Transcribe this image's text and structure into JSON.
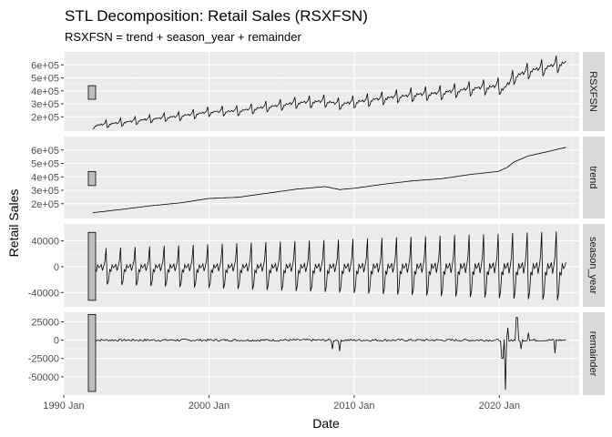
{
  "chart_data": {
    "type": "line",
    "title": "STL Decomposition: Retail Sales (RSXFSN)",
    "subtitle": "RSXFSN = trend + season_year + remainder",
    "xlabel": "Date",
    "ylabel": "Retail Sales",
    "x_ticks": [
      "1990 Jan",
      "2000 Jan",
      "2010 Jan",
      "2020 Jan"
    ],
    "x_tick_years": [
      1990,
      2000,
      2010,
      2020
    ],
    "xlim": [
      1990,
      2025.5
    ],
    "x_start": 1992.0,
    "x_end": 2024.6,
    "theme": {
      "panel_bg": "#ebebeb",
      "grid_major": "#ffffff",
      "strip_bg": "#d9d9d9",
      "line": "#000000",
      "scale_bar": "#bebebe"
    },
    "panels": [
      {
        "name": "RSXFSN",
        "ylim": [
          90000,
          700000
        ],
        "ticks": [
          200000,
          300000,
          400000,
          500000,
          600000
        ],
        "tick_labels": [
          "2e+05",
          "3e+05",
          "4e+05",
          "5e+05",
          "6e+05"
        ],
        "scale_bar": [
          335000,
          440000
        ],
        "series": [
          {
            "year": 1992,
            "value": 133000
          },
          {
            "year": 1994,
            "value": 158000
          },
          {
            "year": 1996,
            "value": 185000
          },
          {
            "year": 1998,
            "value": 206000
          },
          {
            "year": 2000,
            "value": 239000
          },
          {
            "year": 2002,
            "value": 248000
          },
          {
            "year": 2004,
            "value": 278000
          },
          {
            "year": 2006,
            "value": 308000
          },
          {
            "year": 2008,
            "value": 322000
          },
          {
            "year": 2009,
            "value": 300000
          },
          {
            "year": 2010,
            "value": 315000
          },
          {
            "year": 2012,
            "value": 345000
          },
          {
            "year": 2014,
            "value": 370000
          },
          {
            "year": 2016,
            "value": 386000
          },
          {
            "year": 2018,
            "value": 418000
          },
          {
            "year": 2019.9,
            "value": 440000
          },
          {
            "year": 2020.3,
            "value": 415000
          },
          {
            "year": 2021,
            "value": 510000
          },
          {
            "year": 2022,
            "value": 556000
          },
          {
            "year": 2023,
            "value": 580000
          },
          {
            "year": 2024.6,
            "value": 620000
          }
        ],
        "seasonal_amplitude": 48000
      },
      {
        "name": "trend",
        "ylim": [
          90000,
          700000
        ],
        "ticks": [
          200000,
          300000,
          400000,
          500000,
          600000
        ],
        "tick_labels": [
          "2e+05",
          "3e+05",
          "4e+05",
          "5e+05",
          "6e+05"
        ],
        "scale_bar": [
          335000,
          440000
        ],
        "series": [
          {
            "year": 1992,
            "value": 133000
          },
          {
            "year": 1994,
            "value": 158000
          },
          {
            "year": 1996,
            "value": 185000
          },
          {
            "year": 1998,
            "value": 206000
          },
          {
            "year": 2000,
            "value": 239000
          },
          {
            "year": 2002,
            "value": 248000
          },
          {
            "year": 2004,
            "value": 278000
          },
          {
            "year": 2006,
            "value": 308000
          },
          {
            "year": 2008,
            "value": 328000
          },
          {
            "year": 2009,
            "value": 305000
          },
          {
            "year": 2010,
            "value": 315000
          },
          {
            "year": 2012,
            "value": 345000
          },
          {
            "year": 2014,
            "value": 370000
          },
          {
            "year": 2016,
            "value": 386000
          },
          {
            "year": 2018,
            "value": 418000
          },
          {
            "year": 2019.9,
            "value": 440000
          },
          {
            "year": 2020.5,
            "value": 468000
          },
          {
            "year": 2021,
            "value": 510000
          },
          {
            "year": 2022,
            "value": 556000
          },
          {
            "year": 2023,
            "value": 580000
          },
          {
            "year": 2024.6,
            "value": 620000
          }
        ]
      },
      {
        "name": "season_year",
        "ylim": [
          -62000,
          66000
        ],
        "ticks": [
          -40000,
          0,
          40000
        ],
        "tick_labels": [
          "-40000",
          "0",
          "40000"
        ],
        "scale_bar": [
          -52000,
          53000
        ],
        "seasonal_amplitude_start": 28000,
        "seasonal_amplitude_end": 55000
      },
      {
        "name": "remainder",
        "ylim": [
          -75000,
          38000
        ],
        "ticks": [
          -50000,
          -25000,
          0,
          25000
        ],
        "tick_labels": [
          "-50000",
          "-25000",
          "0",
          "25000"
        ],
        "scale_bar": [
          -70000,
          35000
        ],
        "spikes": [
          {
            "year": 2008.5,
            "value": -12000
          },
          {
            "year": 2009.0,
            "value": -15000
          },
          {
            "year": 2020.2,
            "value": -25000
          },
          {
            "year": 2020.4,
            "value": -68000
          },
          {
            "year": 2020.6,
            "value": 17000
          },
          {
            "year": 2021.2,
            "value": 31000
          },
          {
            "year": 2021.5,
            "value": -12000
          },
          {
            "year": 2022.0,
            "value": 10000
          },
          {
            "year": 2023.8,
            "value": -18000
          }
        ]
      }
    ]
  }
}
